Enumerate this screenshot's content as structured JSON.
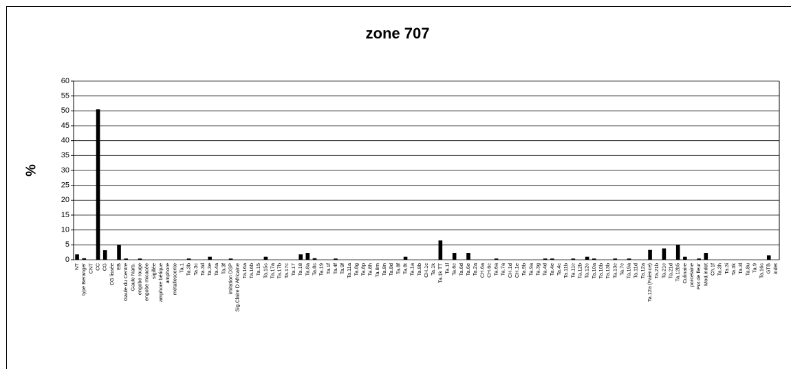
{
  "chart_data": {
    "type": "bar",
    "title": "zone 707",
    "y_label": "%",
    "categories": [
      "NT",
      "type Beranger",
      "CNT",
      "CC",
      "CG",
      "CG lissée",
      "EB",
      "Gaule du Centre",
      "Gaule Narb.",
      "engobe rouge",
      "engobe micacée",
      "sigillée",
      "amphore bétique",
      "amphore",
      "métallescente",
      "Ta.1",
      "Ta.3b",
      "Ta.3c",
      "Ta.3d",
      "Ta.3e",
      "Ta.4a",
      "Ta.3f",
      "imitation DSP",
      "Sig.Claire D Africaine",
      "Ta.16a",
      "Ta.16b",
      "Ta.15",
      "Ta.15c",
      "Ta.17a",
      "Ta.17b",
      "Ta.17c",
      "Ta.17",
      "Ta.18",
      "Ta.8a",
      "Ta.8c",
      "Ta.19",
      "Ta.1f",
      "Ta.4f",
      "Ta.9f",
      "Ta.11a",
      "Ta.8g",
      "Ta.8p",
      "Ta.8h",
      "Ta.8m",
      "Ta.8n",
      "Ta.8d",
      "Ta.8f",
      "Ta.8t",
      "Ta.1a",
      "Ta.8b",
      "CH.1c",
      "Ta.1k",
      "Ta.1k TT",
      "Ta.1l",
      "Ta.6c",
      "Ta.6d",
      "Ta.6e",
      "Ta.2a",
      "CH.6a",
      "CH.6c",
      "Ta.6a",
      "Ta.7a",
      "CH.1d",
      "CH.1e",
      "Ta.9b",
      "Ta.9a",
      "Ta.3g",
      "Ta.4d",
      "Ta.4e",
      "Ta.4c",
      "Ta.11b",
      "Ta.11c",
      "Ta.12b",
      "Ta.12c",
      "Ta.10a",
      "Ta.10b",
      "Ta.13b",
      "Ta.13c",
      "Ta.7c",
      "Ta.19a",
      "Ta.11d",
      "Ta.12a",
      "Ta.12a (Faience)",
      "Ta.21b",
      "Ta.21c",
      "Ta.21d",
      "Ta.12b5",
      "Culinaire",
      "porcelaine",
      "Pot de fleur",
      "Mod.indet",
      "Ch.1f",
      "Ta.3h",
      "Ta.3i",
      "Ta.3k",
      "Ta.3l",
      "Ta.8u",
      "Ta.9",
      "Ta.16c",
      "GTB",
      "indet"
    ],
    "values": [
      1.8,
      0.5,
      0,
      50.5,
      3.2,
      0,
      5,
      0.4,
      0,
      0.4,
      0,
      0,
      0,
      0,
      0,
      0,
      0.4,
      0,
      0,
      1,
      0,
      0,
      0.4,
      0,
      0,
      0,
      0,
      1,
      0,
      0,
      0,
      0,
      1.8,
      2.3,
      0.5,
      0,
      0,
      0.4,
      0,
      0,
      0,
      0,
      0,
      0,
      0,
      0,
      0,
      1,
      0,
      0,
      0,
      0,
      6.5,
      0,
      2.3,
      0,
      2.3,
      0,
      0,
      0,
      0.4,
      0,
      0,
      0,
      0,
      0,
      0,
      0.4,
      0.4,
      0,
      0,
      0.4,
      0,
      1,
      0.4,
      0,
      0,
      0.4,
      0,
      0.4,
      0,
      0,
      3.3,
      0,
      3.8,
      0,
      5,
      1,
      0,
      0.4,
      2.3,
      0,
      0,
      0,
      0,
      0,
      0,
      0,
      0,
      1.5,
      0
    ],
    "color": "#000000",
    "ylim": [
      0,
      60
    ],
    "yticks": [
      0,
      5,
      10,
      15,
      20,
      25,
      30,
      35,
      40,
      45,
      50,
      55,
      60
    ],
    "grid": true
  }
}
